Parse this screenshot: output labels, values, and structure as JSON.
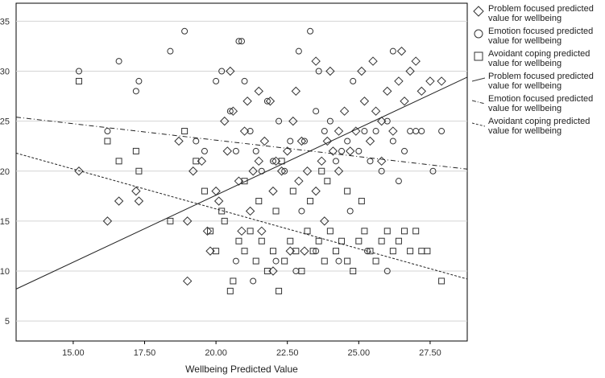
{
  "chart_data": {
    "type": "scatter",
    "title": "",
    "xlabel": "Wellbeing Predicted Value",
    "ylabel": "",
    "xlim": [
      13.0,
      28.8
    ],
    "ylim": [
      3.0,
      36.8
    ],
    "xticks": [
      "15.00",
      "17.50",
      "20.00",
      "22.50",
      "25.00",
      "27.50"
    ],
    "xtick_values": [
      15.0,
      17.5,
      20.0,
      22.5,
      25.0,
      27.5
    ],
    "yticks": [
      "5",
      "10",
      "15",
      "20",
      "25",
      "30",
      "35"
    ],
    "ytick_values": [
      5,
      10,
      15,
      20,
      25,
      30,
      35
    ],
    "grid": "horizontal",
    "legend_position": "right",
    "series": [
      {
        "name": "Problem focused predicted value for wellbeing",
        "marker": "diamond",
        "points": [
          [
            15.2,
            20
          ],
          [
            16.2,
            15
          ],
          [
            16.6,
            17
          ],
          [
            17.2,
            18
          ],
          [
            17.3,
            17
          ],
          [
            18.7,
            23
          ],
          [
            19.0,
            15
          ],
          [
            19.2,
            20
          ],
          [
            19.0,
            9
          ],
          [
            19.5,
            21
          ],
          [
            19.7,
            14
          ],
          [
            20.0,
            18
          ],
          [
            20.1,
            17
          ],
          [
            20.3,
            25
          ],
          [
            20.4,
            22
          ],
          [
            20.6,
            26
          ],
          [
            20.8,
            19
          ],
          [
            21.0,
            24
          ],
          [
            21.1,
            27
          ],
          [
            21.3,
            20
          ],
          [
            21.5,
            21
          ],
          [
            21.7,
            23
          ],
          [
            21.9,
            27
          ],
          [
            22.0,
            18
          ],
          [
            22.1,
            21
          ],
          [
            22.3,
            20
          ],
          [
            22.5,
            22
          ],
          [
            22.7,
            25
          ],
          [
            22.9,
            19
          ],
          [
            23.0,
            23
          ],
          [
            23.2,
            20
          ],
          [
            23.5,
            18
          ],
          [
            23.7,
            21
          ],
          [
            23.9,
            23
          ],
          [
            24.1,
            22
          ],
          [
            24.3,
            24
          ],
          [
            24.5,
            26
          ],
          [
            24.7,
            22
          ],
          [
            24.9,
            24
          ],
          [
            25.1,
            30
          ],
          [
            25.2,
            27
          ],
          [
            25.4,
            23
          ],
          [
            25.6,
            26
          ],
          [
            25.8,
            25
          ],
          [
            26.0,
            28
          ],
          [
            26.2,
            24
          ],
          [
            26.4,
            29
          ],
          [
            26.6,
            27
          ],
          [
            26.8,
            30
          ],
          [
            27.0,
            31
          ],
          [
            27.2,
            28
          ],
          [
            27.5,
            29
          ],
          [
            27.9,
            29
          ],
          [
            26.5,
            32
          ],
          [
            25.5,
            31
          ],
          [
            23.5,
            31
          ],
          [
            24.0,
            30
          ],
          [
            21.5,
            28
          ],
          [
            22.8,
            28
          ],
          [
            20.5,
            30
          ],
          [
            24.3,
            20
          ],
          [
            25.8,
            21
          ],
          [
            22.6,
            12
          ],
          [
            23.1,
            12
          ],
          [
            21.2,
            16
          ],
          [
            20.9,
            14
          ],
          [
            19.8,
            12
          ],
          [
            22.0,
            10
          ],
          [
            21.6,
            14
          ],
          [
            23.8,
            15
          ]
        ]
      },
      {
        "name": "Emotion focused predicted value for wellbeing",
        "marker": "circle",
        "points": [
          [
            15.2,
            30
          ],
          [
            16.2,
            24
          ],
          [
            16.6,
            31
          ],
          [
            17.2,
            28
          ],
          [
            17.3,
            29
          ],
          [
            18.4,
            32
          ],
          [
            18.9,
            34
          ],
          [
            19.3,
            23
          ],
          [
            19.6,
            22
          ],
          [
            20.0,
            29
          ],
          [
            20.2,
            30
          ],
          [
            20.5,
            26
          ],
          [
            20.7,
            22
          ],
          [
            20.8,
            33
          ],
          [
            20.9,
            33
          ],
          [
            21.0,
            29
          ],
          [
            21.2,
            24
          ],
          [
            21.4,
            22
          ],
          [
            21.6,
            20
          ],
          [
            21.8,
            27
          ],
          [
            22.0,
            21
          ],
          [
            22.2,
            25
          ],
          [
            22.4,
            20
          ],
          [
            22.6,
            23
          ],
          [
            22.9,
            32
          ],
          [
            23.1,
            23
          ],
          [
            23.3,
            34
          ],
          [
            23.5,
            26
          ],
          [
            23.8,
            24
          ],
          [
            24.0,
            25
          ],
          [
            24.2,
            21
          ],
          [
            24.4,
            22
          ],
          [
            24.6,
            23
          ],
          [
            24.8,
            29
          ],
          [
            25.0,
            22
          ],
          [
            25.2,
            24
          ],
          [
            25.4,
            21
          ],
          [
            25.6,
            24
          ],
          [
            25.8,
            20
          ],
          [
            26.0,
            25
          ],
          [
            26.2,
            23
          ],
          [
            26.4,
            19
          ],
          [
            26.6,
            22
          ],
          [
            26.8,
            24
          ],
          [
            27.0,
            24
          ],
          [
            27.2,
            24
          ],
          [
            27.6,
            20
          ],
          [
            27.9,
            24
          ],
          [
            26.2,
            32
          ],
          [
            23.6,
            30
          ],
          [
            20.7,
            11
          ],
          [
            21.3,
            9
          ],
          [
            22.1,
            11
          ],
          [
            22.8,
            10
          ],
          [
            23.5,
            12
          ],
          [
            24.3,
            11
          ],
          [
            25.3,
            12
          ],
          [
            26.0,
            10
          ],
          [
            24.7,
            16
          ],
          [
            23.0,
            16
          ]
        ]
      },
      {
        "name": "Avoidant coping predicted value for wellbeing",
        "marker": "square",
        "points": [
          [
            15.2,
            29
          ],
          [
            16.2,
            23
          ],
          [
            16.6,
            21
          ],
          [
            17.2,
            22
          ],
          [
            17.3,
            20
          ],
          [
            18.4,
            15
          ],
          [
            18.9,
            24
          ],
          [
            19.3,
            21
          ],
          [
            19.6,
            18
          ],
          [
            19.8,
            14
          ],
          [
            20.0,
            12
          ],
          [
            20.2,
            16
          ],
          [
            20.3,
            15
          ],
          [
            20.5,
            8
          ],
          [
            20.6,
            9
          ],
          [
            20.8,
            13
          ],
          [
            21.0,
            12
          ],
          [
            21.2,
            14
          ],
          [
            21.4,
            11
          ],
          [
            21.6,
            13
          ],
          [
            21.8,
            10
          ],
          [
            22.0,
            12
          ],
          [
            22.2,
            8
          ],
          [
            22.4,
            11
          ],
          [
            22.6,
            13
          ],
          [
            22.8,
            12
          ],
          [
            23.0,
            10
          ],
          [
            23.2,
            14
          ],
          [
            23.4,
            12
          ],
          [
            23.6,
            13
          ],
          [
            23.8,
            11
          ],
          [
            24.0,
            14
          ],
          [
            24.2,
            12
          ],
          [
            24.4,
            13
          ],
          [
            24.6,
            11
          ],
          [
            24.8,
            10
          ],
          [
            25.0,
            13
          ],
          [
            25.2,
            14
          ],
          [
            25.4,
            12
          ],
          [
            25.6,
            11
          ],
          [
            25.8,
            13
          ],
          [
            26.0,
            14
          ],
          [
            26.2,
            12
          ],
          [
            26.4,
            13
          ],
          [
            26.6,
            14
          ],
          [
            26.8,
            12
          ],
          [
            27.0,
            14
          ],
          [
            27.2,
            12
          ],
          [
            27.4,
            12
          ],
          [
            27.9,
            9
          ],
          [
            21.0,
            19
          ],
          [
            21.5,
            17
          ],
          [
            22.1,
            16
          ],
          [
            22.7,
            18
          ],
          [
            23.3,
            17
          ],
          [
            23.9,
            19
          ],
          [
            24.6,
            18
          ],
          [
            25.1,
            17
          ],
          [
            22.3,
            21
          ],
          [
            23.7,
            20
          ]
        ]
      }
    ],
    "fit_lines": [
      {
        "name": "Problem focused predicted value for wellbeing",
        "style": "solid",
        "x": [
          13.0,
          28.8
        ],
        "y": [
          8.2,
          29.4
        ]
      },
      {
        "name": "Emotion focused predicted value for wellbeing",
        "style": "dashdot",
        "x": [
          13.0,
          28.8
        ],
        "y": [
          25.4,
          20.2
        ]
      },
      {
        "name": "Avoidant coping predicted value for wellbeing",
        "style": "dashed",
        "x": [
          13.0,
          28.8
        ],
        "y": [
          21.8,
          9.2
        ]
      }
    ]
  }
}
